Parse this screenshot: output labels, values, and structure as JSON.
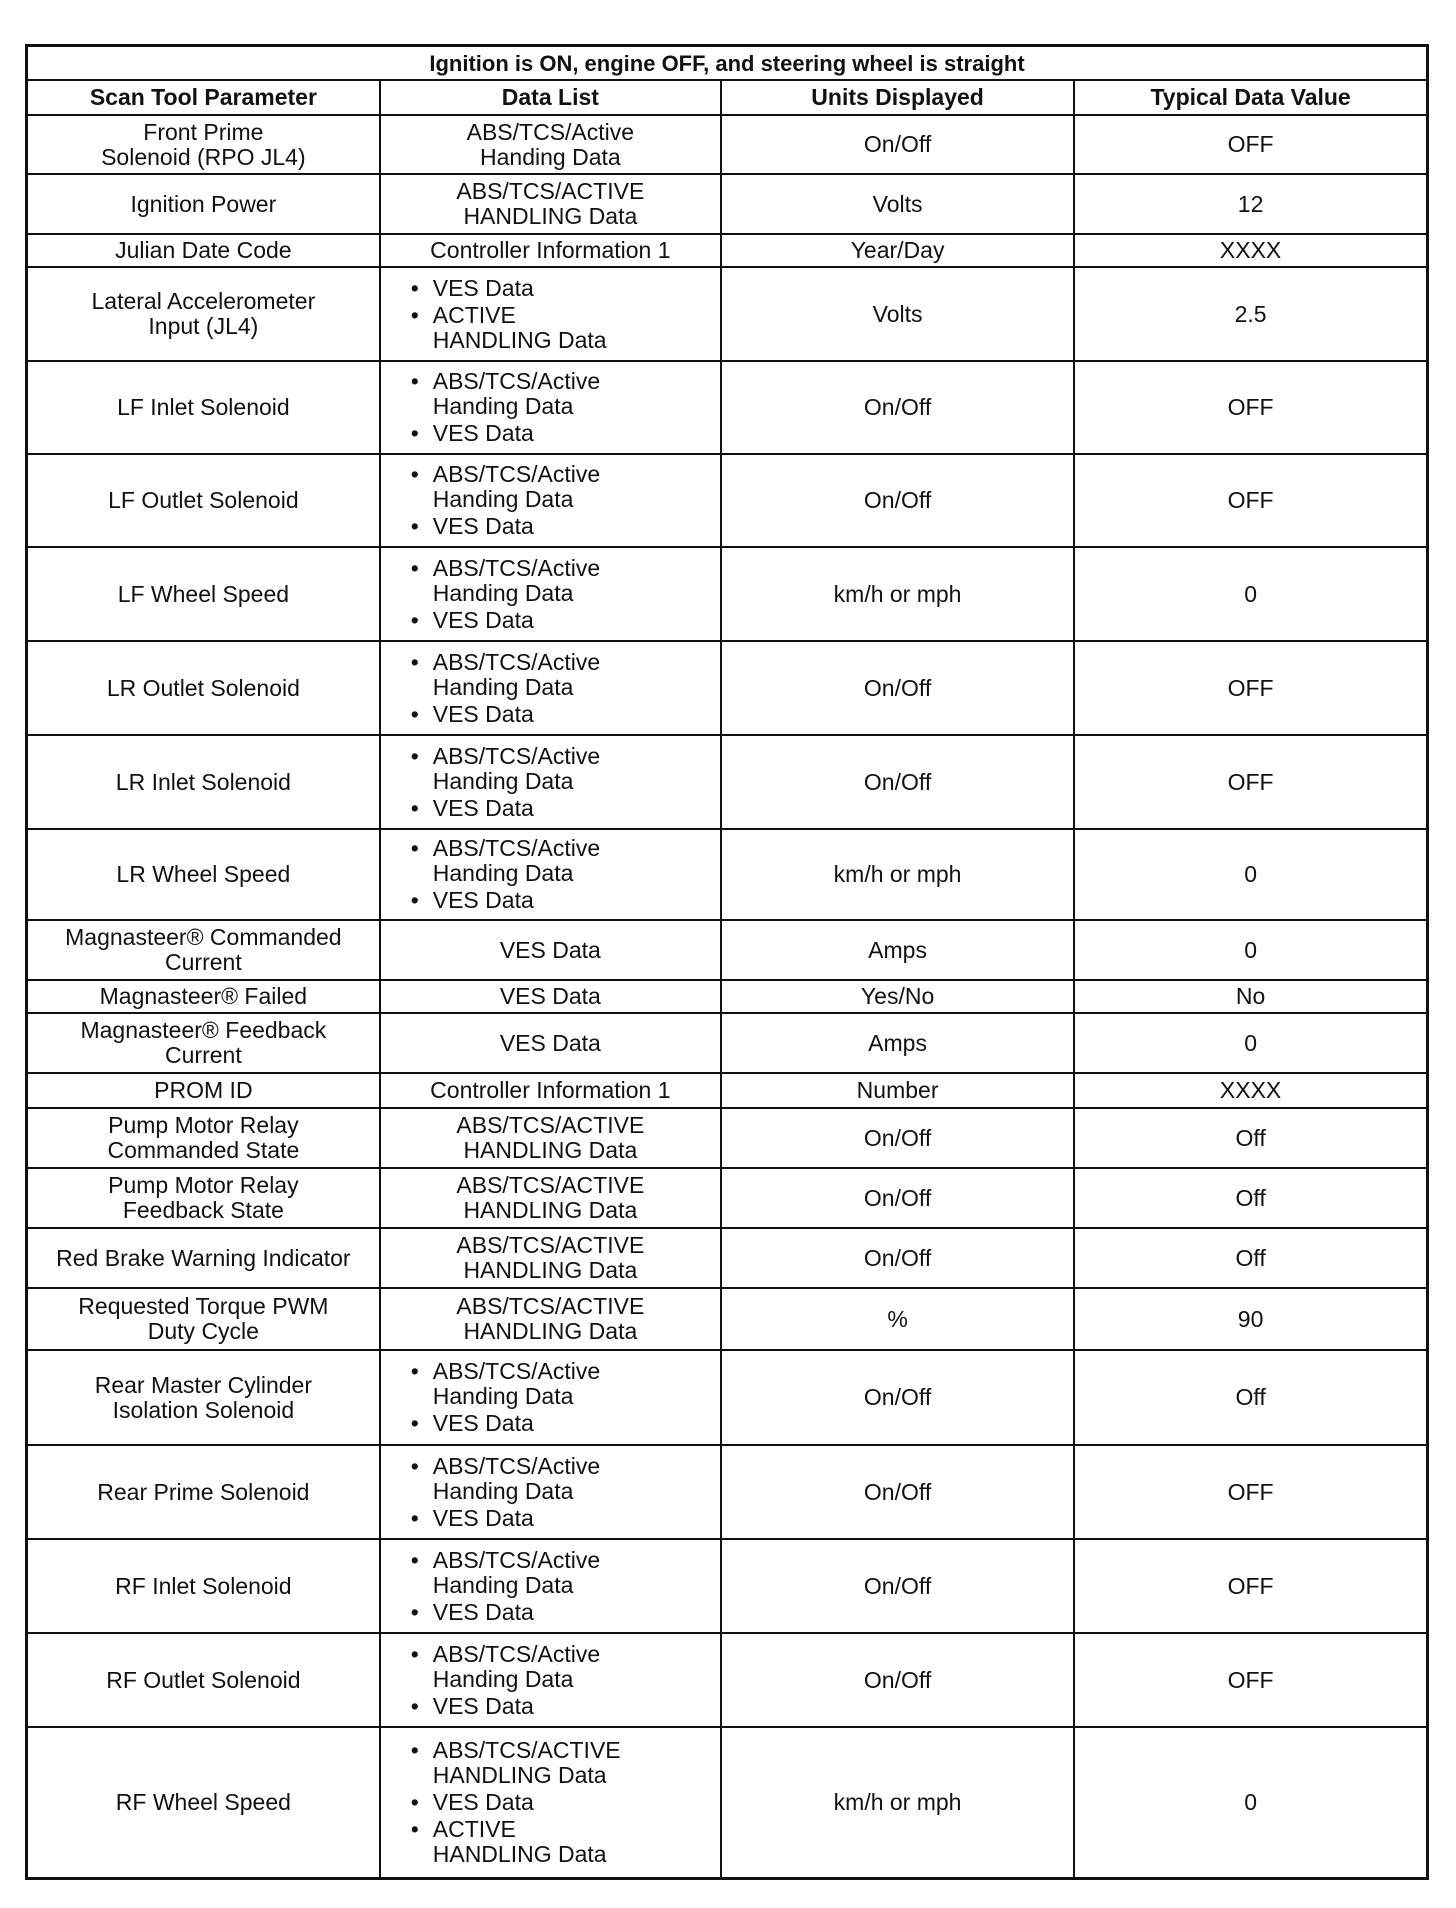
{
  "title": "Ignition is ON, engine OFF, and steering wheel is straight",
  "headers": [
    "Scan Tool Parameter",
    "Data List",
    "Units Displayed",
    "Typical Data Value"
  ],
  "rows": [
    {
      "param": "Front Prime\nSolenoid (RPO JL4)",
      "bullets": false,
      "data_list": [
        "ABS/TCS/Active\nHanding Data"
      ],
      "units": "On/Off",
      "value": "OFF"
    },
    {
      "param": "Ignition Power",
      "bullets": false,
      "data_list": [
        "ABS/TCS/ACTIVE\nHANDLING Data"
      ],
      "units": "Volts",
      "value": "12"
    },
    {
      "param": "Julian Date Code",
      "bullets": false,
      "data_list": [
        "Controller Information 1"
      ],
      "units": "Year/Day",
      "value": "XXXX"
    },
    {
      "param": "Lateral Accelerometer\nInput (JL4)",
      "bullets": true,
      "data_list": [
        "VES Data",
        "ACTIVE\nHANDLING Data"
      ],
      "units": "Volts",
      "value": "2.5"
    },
    {
      "param": "LF Inlet Solenoid",
      "bullets": true,
      "data_list": [
        "ABS/TCS/Active\nHanding Data",
        "VES Data"
      ],
      "units": "On/Off",
      "value": "OFF"
    },
    {
      "param": "LF Outlet Solenoid",
      "bullets": true,
      "data_list": [
        "ABS/TCS/Active\nHanding Data",
        "VES Data"
      ],
      "units": "On/Off",
      "value": "OFF"
    },
    {
      "param": "LF Wheel Speed",
      "bullets": true,
      "data_list": [
        "ABS/TCS/Active\nHanding Data",
        "VES Data"
      ],
      "units": "km/h or mph",
      "value": "0"
    },
    {
      "param": "LR Outlet Solenoid",
      "bullets": true,
      "data_list": [
        "ABS/TCS/Active\nHanding Data",
        "VES Data"
      ],
      "units": "On/Off",
      "value": "OFF"
    },
    {
      "param": "LR Inlet Solenoid",
      "bullets": true,
      "data_list": [
        "ABS/TCS/Active\nHanding Data",
        "VES Data"
      ],
      "units": "On/Off",
      "value": "OFF"
    },
    {
      "param": "LR Wheel Speed",
      "bullets": true,
      "data_list": [
        "ABS/TCS/Active\nHanding Data",
        "VES Data"
      ],
      "units": "km/h or mph",
      "value": "0"
    },
    {
      "param": "Magnasteer® Commanded\nCurrent",
      "bullets": false,
      "data_list": [
        "VES Data"
      ],
      "units": "Amps",
      "value": "0"
    },
    {
      "param": "Magnasteer® Failed",
      "bullets": false,
      "data_list": [
        "VES Data"
      ],
      "units": "Yes/No",
      "value": "No"
    },
    {
      "param": "Magnasteer® Feedback\nCurrent",
      "bullets": false,
      "data_list": [
        "VES Data"
      ],
      "units": "Amps",
      "value": "0"
    },
    {
      "param": "PROM ID",
      "bullets": false,
      "data_list": [
        "Controller Information 1"
      ],
      "units": "Number",
      "value": "XXXX"
    },
    {
      "param": "Pump Motor Relay\nCommanded State",
      "bullets": false,
      "data_list": [
        "ABS/TCS/ACTIVE\nHANDLING Data"
      ],
      "units": "On/Off",
      "value": "Off"
    },
    {
      "param": "Pump Motor Relay\nFeedback State",
      "bullets": false,
      "data_list": [
        "ABS/TCS/ACTIVE\nHANDLING Data"
      ],
      "units": "On/Off",
      "value": "Off"
    },
    {
      "param": "Red Brake Warning Indicator",
      "bullets": false,
      "data_list": [
        "ABS/TCS/ACTIVE\nHANDLING Data"
      ],
      "units": "On/Off",
      "value": "Off"
    },
    {
      "param": "Requested Torque PWM\nDuty Cycle",
      "bullets": false,
      "data_list": [
        "ABS/TCS/ACTIVE\nHANDLING Data"
      ],
      "units": "%",
      "value": "90"
    },
    {
      "param": "Rear Master Cylinder\nIsolation Solenoid",
      "bullets": true,
      "data_list": [
        "ABS/TCS/Active\nHanding Data",
        "VES Data"
      ],
      "units": "On/Off",
      "value": "Off"
    },
    {
      "param": "Rear Prime Solenoid",
      "bullets": true,
      "data_list": [
        "ABS/TCS/Active\nHanding Data",
        "VES Data"
      ],
      "units": "On/Off",
      "value": "OFF"
    },
    {
      "param": "RF Inlet Solenoid",
      "bullets": true,
      "data_list": [
        "ABS/TCS/Active\nHanding Data",
        "VES Data"
      ],
      "units": "On/Off",
      "value": "OFF"
    },
    {
      "param": "RF Outlet Solenoid",
      "bullets": true,
      "data_list": [
        "ABS/TCS/Active\nHanding Data",
        "VES Data"
      ],
      "units": "On/Off",
      "value": "OFF"
    },
    {
      "param": "RF Wheel Speed",
      "bullets": true,
      "data_list": [
        "ABS/TCS/ACTIVE\nHANDLING Data",
        "VES Data",
        "ACTIVE\nHANDLING Data"
      ],
      "units": "km/h or mph",
      "value": "0"
    }
  ]
}
